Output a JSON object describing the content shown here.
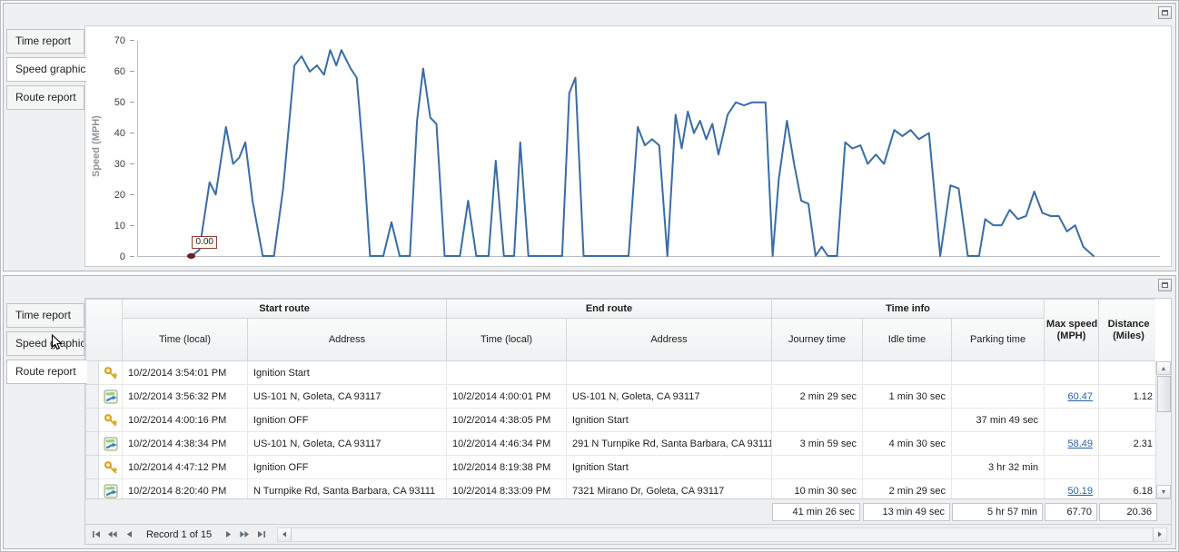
{
  "colors": {
    "chart_line": "#3a6ca6",
    "marker": "#7a1a1a",
    "link": "#2b5fa5"
  },
  "top_panel": {
    "tabs": [
      {
        "label": "Time report",
        "selected": false
      },
      {
        "label": "Speed graphic",
        "selected": true
      },
      {
        "label": "Route report",
        "selected": false
      }
    ]
  },
  "chart_data": {
    "type": "line",
    "title": "",
    "ylabel": "Speed (MPH)",
    "ylim": [
      0,
      70
    ],
    "yticks": [
      0,
      10,
      20,
      30,
      40,
      50,
      60,
      70
    ],
    "grid": "off",
    "x_unit": "percent_of_plot_width",
    "line_color": "#3a6ca6",
    "marker": {
      "x": 5.2,
      "y": 0,
      "label": "0.00",
      "color": "#7a1a1a"
    },
    "points": [
      [
        5.2,
        0
      ],
      [
        6.0,
        2
      ],
      [
        7.0,
        24
      ],
      [
        7.6,
        20
      ],
      [
        8.6,
        42
      ],
      [
        9.3,
        30
      ],
      [
        9.9,
        32
      ],
      [
        10.5,
        37
      ],
      [
        11.2,
        18
      ],
      [
        12.2,
        0
      ],
      [
        13.3,
        0
      ],
      [
        14.2,
        22
      ],
      [
        15.3,
        62
      ],
      [
        16.0,
        65
      ],
      [
        16.8,
        60
      ],
      [
        17.5,
        62
      ],
      [
        18.2,
        59
      ],
      [
        18.8,
        67
      ],
      [
        19.4,
        62
      ],
      [
        19.9,
        67
      ],
      [
        20.8,
        61
      ],
      [
        21.4,
        58
      ],
      [
        22.1,
        30
      ],
      [
        22.7,
        0
      ],
      [
        24.0,
        0
      ],
      [
        24.8,
        11
      ],
      [
        25.6,
        0
      ],
      [
        26.6,
        0
      ],
      [
        27.3,
        44
      ],
      [
        27.9,
        61
      ],
      [
        28.6,
        45
      ],
      [
        29.2,
        43
      ],
      [
        30.0,
        0
      ],
      [
        31.5,
        0
      ],
      [
        32.3,
        18
      ],
      [
        33.1,
        0
      ],
      [
        34.3,
        0
      ],
      [
        35.0,
        31
      ],
      [
        35.8,
        0
      ],
      [
        36.8,
        0
      ],
      [
        37.4,
        37
      ],
      [
        38.2,
        0
      ],
      [
        41.5,
        0
      ],
      [
        42.2,
        53
      ],
      [
        42.8,
        58
      ],
      [
        43.6,
        0
      ],
      [
        48.0,
        0
      ],
      [
        48.9,
        42
      ],
      [
        49.6,
        36
      ],
      [
        50.3,
        38
      ],
      [
        51.0,
        36
      ],
      [
        51.8,
        0
      ],
      [
        52.6,
        46
      ],
      [
        53.2,
        35
      ],
      [
        53.8,
        47
      ],
      [
        54.4,
        40
      ],
      [
        55.0,
        44
      ],
      [
        55.6,
        38
      ],
      [
        56.2,
        43
      ],
      [
        56.8,
        33
      ],
      [
        57.7,
        46
      ],
      [
        58.5,
        50
      ],
      [
        59.3,
        49
      ],
      [
        60.1,
        50
      ],
      [
        61.4,
        50
      ],
      [
        62.1,
        0
      ],
      [
        62.7,
        25
      ],
      [
        63.5,
        44
      ],
      [
        64.2,
        30
      ],
      [
        64.9,
        18
      ],
      [
        65.6,
        17
      ],
      [
        66.3,
        0
      ],
      [
        66.9,
        3
      ],
      [
        67.5,
        0
      ],
      [
        68.4,
        0
      ],
      [
        69.2,
        37
      ],
      [
        69.9,
        35
      ],
      [
        70.7,
        36
      ],
      [
        71.4,
        30
      ],
      [
        72.2,
        33
      ],
      [
        73.0,
        30
      ],
      [
        74.0,
        41
      ],
      [
        74.8,
        39
      ],
      [
        75.6,
        41
      ],
      [
        76.4,
        38
      ],
      [
        77.4,
        40
      ],
      [
        78.5,
        0
      ],
      [
        79.5,
        23
      ],
      [
        80.3,
        22
      ],
      [
        81.2,
        0
      ],
      [
        82.3,
        0
      ],
      [
        82.9,
        12
      ],
      [
        83.7,
        10
      ],
      [
        84.5,
        10
      ],
      [
        85.3,
        15
      ],
      [
        86.1,
        12
      ],
      [
        86.9,
        13
      ],
      [
        87.7,
        21
      ],
      [
        88.5,
        14
      ],
      [
        89.3,
        13
      ],
      [
        90.1,
        13
      ],
      [
        90.9,
        8
      ],
      [
        91.7,
        10
      ],
      [
        92.5,
        3
      ],
      [
        93.5,
        0
      ]
    ]
  },
  "bottom_panel": {
    "tabs": [
      {
        "label": "Time report",
        "selected": false
      },
      {
        "label": "Speed graphic",
        "selected": false
      },
      {
        "label": "Route report",
        "selected": true
      }
    ],
    "table": {
      "groups": {
        "start": "Start route",
        "end": "End route",
        "time": "Time info"
      },
      "headers": {
        "start_time": "Time (local)",
        "start_address": "Address",
        "end_time": "Time (local)",
        "end_address": "Address",
        "journey": "Journey time",
        "idle": "Idle time",
        "parking": "Parking time",
        "max_speed_1": "Max speed",
        "max_speed_2": "(MPH)",
        "distance_1": "Distance",
        "distance_2": "(Miles)"
      },
      "rows": [
        {
          "icon": "key-icon",
          "start_time": "10/2/2014 3:54:01 PM",
          "start_address": "Ignition Start",
          "end_time": "",
          "end_address": "",
          "journey": "",
          "idle": "",
          "parking": "",
          "max_speed": "",
          "distance": ""
        },
        {
          "icon": "route-icon",
          "start_time": "10/2/2014 3:56:32 PM",
          "start_address": "US-101 N, Goleta, CA 93117",
          "end_time": "10/2/2014 4:00:01 PM",
          "end_address": "US-101 N, Goleta, CA 93117",
          "journey": "2 min 29 sec",
          "idle": "1 min 30 sec",
          "parking": "",
          "max_speed": "60.47",
          "distance": "1.12"
        },
        {
          "icon": "key-icon",
          "start_time": "10/2/2014 4:00:16 PM",
          "start_address": "Ignition OFF",
          "end_time": "10/2/2014 4:38:05 PM",
          "end_address": "Ignition Start",
          "journey": "",
          "idle": "",
          "parking": "37 min 49 sec",
          "max_speed": "",
          "distance": ""
        },
        {
          "icon": "route-icon",
          "start_time": "10/2/2014 4:38:34 PM",
          "start_address": "US-101 N, Goleta, CA 93117",
          "end_time": "10/2/2014 4:46:34 PM",
          "end_address": "291 N Turnpike Rd, Santa Barbara, CA 93111",
          "journey": "3 min 59 sec",
          "idle": "4 min 30 sec",
          "parking": "",
          "max_speed": "58.49",
          "distance": "2.31"
        },
        {
          "icon": "key-icon",
          "start_time": "10/2/2014 4:47:12 PM",
          "start_address": "Ignition OFF",
          "end_time": "10/2/2014 8:19:38 PM",
          "end_address": "Ignition Start",
          "journey": "",
          "idle": "",
          "parking": "3 hr 32 min",
          "max_speed": "",
          "distance": ""
        },
        {
          "icon": "route-icon",
          "start_time": "10/2/2014 8:20:40 PM",
          "start_address": "N Turnpike Rd, Santa Barbara, CA 93111",
          "end_time": "10/2/2014 8:33:09 PM",
          "end_address": "7321 Mirano Dr, Goleta, CA 93117",
          "journey": "10 min 30 sec",
          "idle": "2 min 29 sec",
          "parking": "",
          "max_speed": "50.19",
          "distance": "6.18"
        }
      ],
      "summary": {
        "journey": "41 min 26 sec",
        "idle": "13 min 49 sec",
        "parking": "5 hr 57 min",
        "max_speed": "67.70",
        "distance": "20.36"
      }
    },
    "record_nav": {
      "label": "Record 1 of 15"
    }
  }
}
